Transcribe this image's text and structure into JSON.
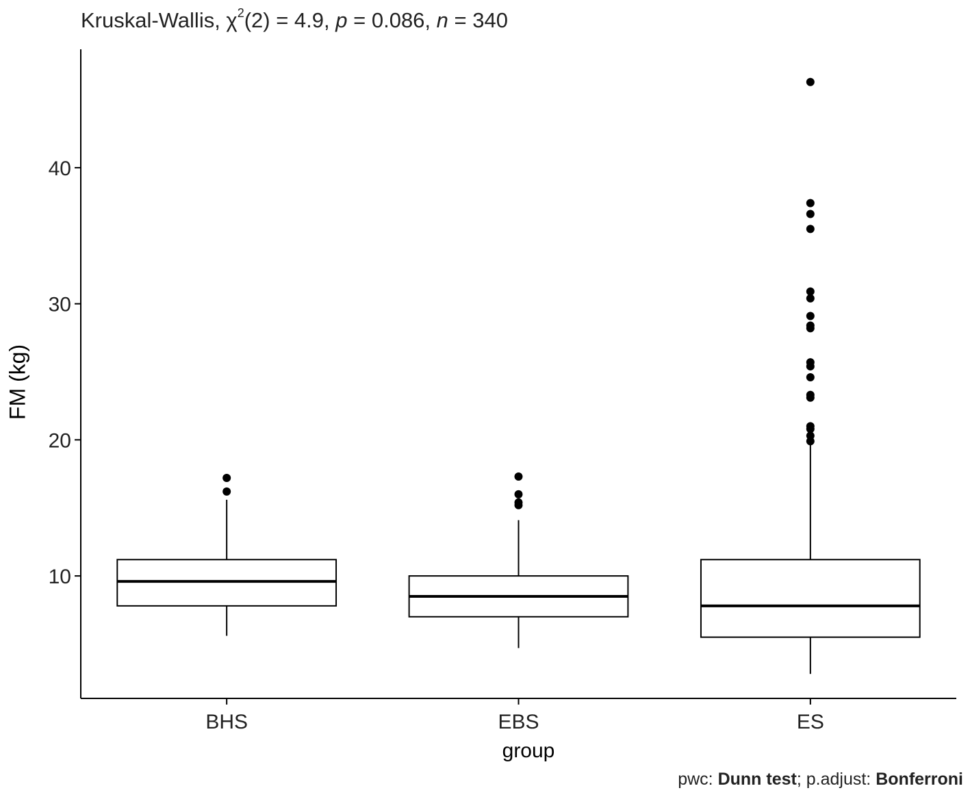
{
  "header": {
    "title_prefix": "Kruskal-Wallis, χ",
    "title_sup": "2",
    "title_df": "(2) = 4.9, ",
    "title_p_label": "p",
    "title_p_value": " = 0.086, ",
    "title_n_label": "n",
    "title_n_value": " = 340"
  },
  "footer": {
    "pwc_label": "pwc: ",
    "pwc_method": "Dunn test",
    "adjust_label": "; p.adjust: ",
    "adjust_method": "Bonferroni"
  },
  "chart_data": {
    "type": "boxplot",
    "xlabel": "group",
    "ylabel": "FM (kg)",
    "categories": [
      "BHS",
      "EBS",
      "ES"
    ],
    "yticks": [
      10,
      20,
      30,
      40
    ],
    "ylim": [
      1.0,
      48.7
    ],
    "grid": false,
    "boxes": [
      {
        "name": "BHS",
        "q1": 7.8,
        "median": 9.6,
        "q3": 11.2,
        "whisker_low": 5.6,
        "whisker_high": 15.6,
        "outliers": [
          16.2,
          17.2
        ]
      },
      {
        "name": "EBS",
        "q1": 7.0,
        "median": 8.5,
        "q3": 10.0,
        "whisker_low": 4.7,
        "whisker_high": 14.1,
        "outliers": [
          15.2,
          15.4,
          16.0,
          17.3
        ]
      },
      {
        "name": "ES",
        "q1": 5.5,
        "median": 7.8,
        "q3": 11.2,
        "whisker_low": 2.8,
        "whisker_high": 19.7,
        "outliers": [
          19.9,
          20.3,
          20.8,
          21.0,
          23.1,
          23.3,
          24.6,
          25.4,
          25.7,
          28.2,
          28.4,
          29.1,
          30.4,
          30.9,
          35.5,
          36.6,
          37.4,
          46.3
        ]
      }
    ]
  }
}
